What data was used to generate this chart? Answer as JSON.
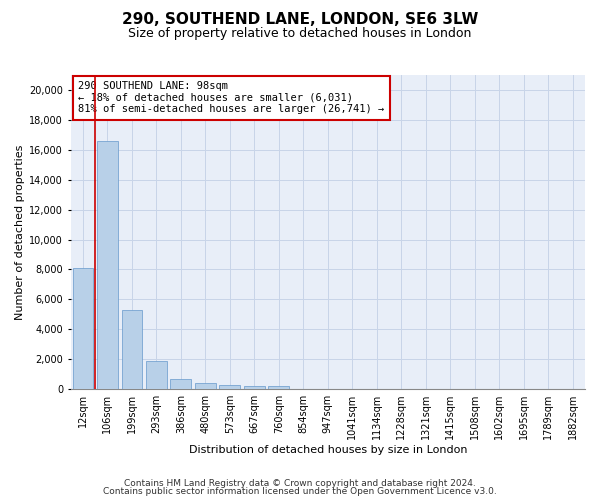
{
  "title": "290, SOUTHEND LANE, LONDON, SE6 3LW",
  "subtitle": "Size of property relative to detached houses in London",
  "xlabel": "Distribution of detached houses by size in London",
  "ylabel": "Number of detached properties",
  "categories": [
    "12sqm",
    "106sqm",
    "199sqm",
    "293sqm",
    "386sqm",
    "480sqm",
    "573sqm",
    "667sqm",
    "760sqm",
    "854sqm",
    "947sqm",
    "1041sqm",
    "1134sqm",
    "1228sqm",
    "1321sqm",
    "1415sqm",
    "1508sqm",
    "1602sqm",
    "1695sqm",
    "1789sqm",
    "1882sqm"
  ],
  "values": [
    8100,
    16600,
    5300,
    1850,
    700,
    380,
    280,
    230,
    210,
    0,
    0,
    0,
    0,
    0,
    0,
    0,
    0,
    0,
    0,
    0,
    0
  ],
  "bar_color": "#b8d0e8",
  "bar_edge_color": "#6699cc",
  "annotation_box_text": "290 SOUTHEND LANE: 98sqm\n← 18% of detached houses are smaller (6,031)\n81% of semi-detached houses are larger (26,741) →",
  "footnote1": "Contains HM Land Registry data © Crown copyright and database right 2024.",
  "footnote2": "Contains public sector information licensed under the Open Government Licence v3.0.",
  "ylim": [
    0,
    21000
  ],
  "yticks": [
    0,
    2000,
    4000,
    6000,
    8000,
    10000,
    12000,
    14000,
    16000,
    18000,
    20000
  ],
  "background_color": "#e8eef8",
  "grid_color": "#c8d4e8",
  "red_line_color": "#cc0000",
  "annotation_box_edge_color": "#cc0000",
  "title_fontsize": 11,
  "subtitle_fontsize": 9,
  "axis_label_fontsize": 8,
  "tick_fontsize": 7,
  "annotation_fontsize": 7.5,
  "footnote_fontsize": 6.5
}
